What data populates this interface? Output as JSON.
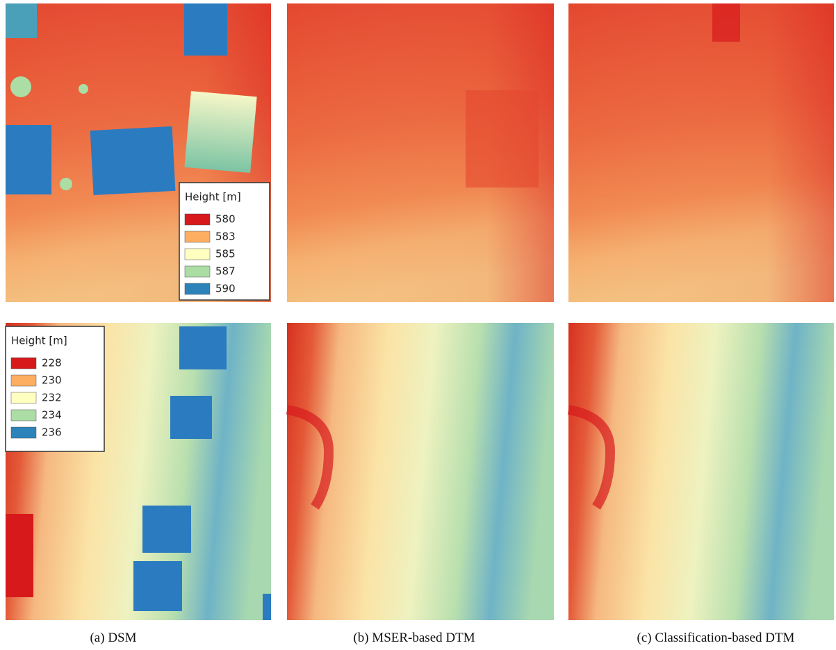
{
  "figure": {
    "panels": [
      {
        "caption": "(a) DSM"
      },
      {
        "caption": "(b) MSER-based DTM"
      },
      {
        "caption": "(c) Classification-based DTM"
      }
    ],
    "legends": [
      {
        "title": "Height [m]",
        "entries": [
          {
            "value": 580,
            "color": "#d7191c"
          },
          {
            "value": 583,
            "color": "#fdae61"
          },
          {
            "value": 585,
            "color": "#ffffbf"
          },
          {
            "value": 587,
            "color": "#abdda4"
          },
          {
            "value": 590,
            "color": "#2b83ba"
          }
        ]
      },
      {
        "title": "Height [m]",
        "entries": [
          {
            "value": 228,
            "color": "#d7191c"
          },
          {
            "value": 230,
            "color": "#fdae61"
          },
          {
            "value": 232,
            "color": "#ffffbf"
          },
          {
            "value": 234,
            "color": "#abdda4"
          },
          {
            "value": 236,
            "color": "#2b83ba"
          }
        ]
      }
    ]
  }
}
